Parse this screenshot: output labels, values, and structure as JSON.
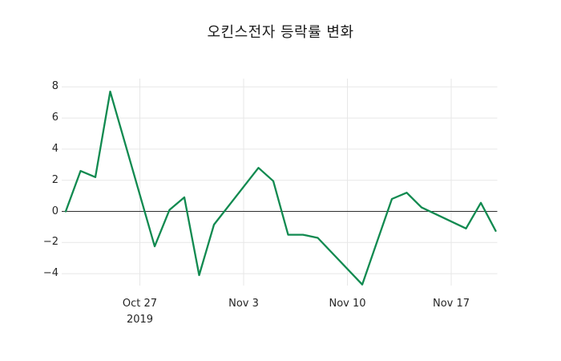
{
  "chart_data": {
    "type": "line",
    "title": "오킨스전자 등락률 변화",
    "grid": true,
    "zero_line": true,
    "legend": "none",
    "ylim": [
      -4.9,
      8.5
    ],
    "x_unit": "days-from-first-point",
    "points": [
      {
        "date": "Oct 22",
        "day": 0,
        "value": 0.0
      },
      {
        "date": "Oct 23",
        "day": 1,
        "value": 2.6
      },
      {
        "date": "Oct 24",
        "day": 2,
        "value": 2.2
      },
      {
        "date": "Oct 25",
        "day": 3,
        "value": 7.7
      },
      {
        "date": "Oct 28",
        "day": 6,
        "value": -2.25
      },
      {
        "date": "Oct 29",
        "day": 7,
        "value": 0.1
      },
      {
        "date": "Oct 30",
        "day": 8,
        "value": 0.9
      },
      {
        "date": "Oct 31",
        "day": 9,
        "value": -4.1
      },
      {
        "date": "Nov 1",
        "day": 10,
        "value": -0.85
      },
      {
        "date": "Nov 4",
        "day": 13,
        "value": 2.8
      },
      {
        "date": "Nov 5",
        "day": 14,
        "value": 1.95
      },
      {
        "date": "Nov 6",
        "day": 15,
        "value": -1.5
      },
      {
        "date": "Nov 7",
        "day": 16,
        "value": -1.5
      },
      {
        "date": "Nov 8",
        "day": 17,
        "value": -1.7
      },
      {
        "date": "Nov 11",
        "day": 20,
        "value": -4.7
      },
      {
        "date": "Nov 12",
        "day": 21,
        "value": -1.95
      },
      {
        "date": "Nov 13",
        "day": 22,
        "value": 0.8
      },
      {
        "date": "Nov 14",
        "day": 23,
        "value": 1.2
      },
      {
        "date": "Nov 15",
        "day": 24,
        "value": 0.25
      },
      {
        "date": "Nov 18",
        "day": 27,
        "value": -1.1
      },
      {
        "date": "Nov 19",
        "day": 28,
        "value": 0.55
      },
      {
        "date": "Nov 20",
        "day": 29,
        "value": -1.25
      }
    ],
    "x_ticks": [
      {
        "day": 5,
        "label": "Oct 27",
        "sublabel": "2019"
      },
      {
        "day": 12,
        "label": "Nov 3",
        "sublabel": ""
      },
      {
        "day": 19,
        "label": "Nov 10",
        "sublabel": ""
      },
      {
        "day": 26,
        "label": "Nov 17",
        "sublabel": ""
      }
    ],
    "y_ticks": [
      {
        "value": 8,
        "label": "8"
      },
      {
        "value": 6,
        "label": "6"
      },
      {
        "value": 4,
        "label": "4"
      },
      {
        "value": 2,
        "label": "2"
      },
      {
        "value": 0,
        "label": "0"
      },
      {
        "value": -2,
        "label": "−2"
      },
      {
        "value": -4,
        "label": "−4"
      }
    ],
    "colors": {
      "line": "#118a50",
      "zero_line": "#2e2e2e",
      "grid": "#e7e7e7",
      "text": "#262626",
      "background": "#ffffff"
    }
  }
}
